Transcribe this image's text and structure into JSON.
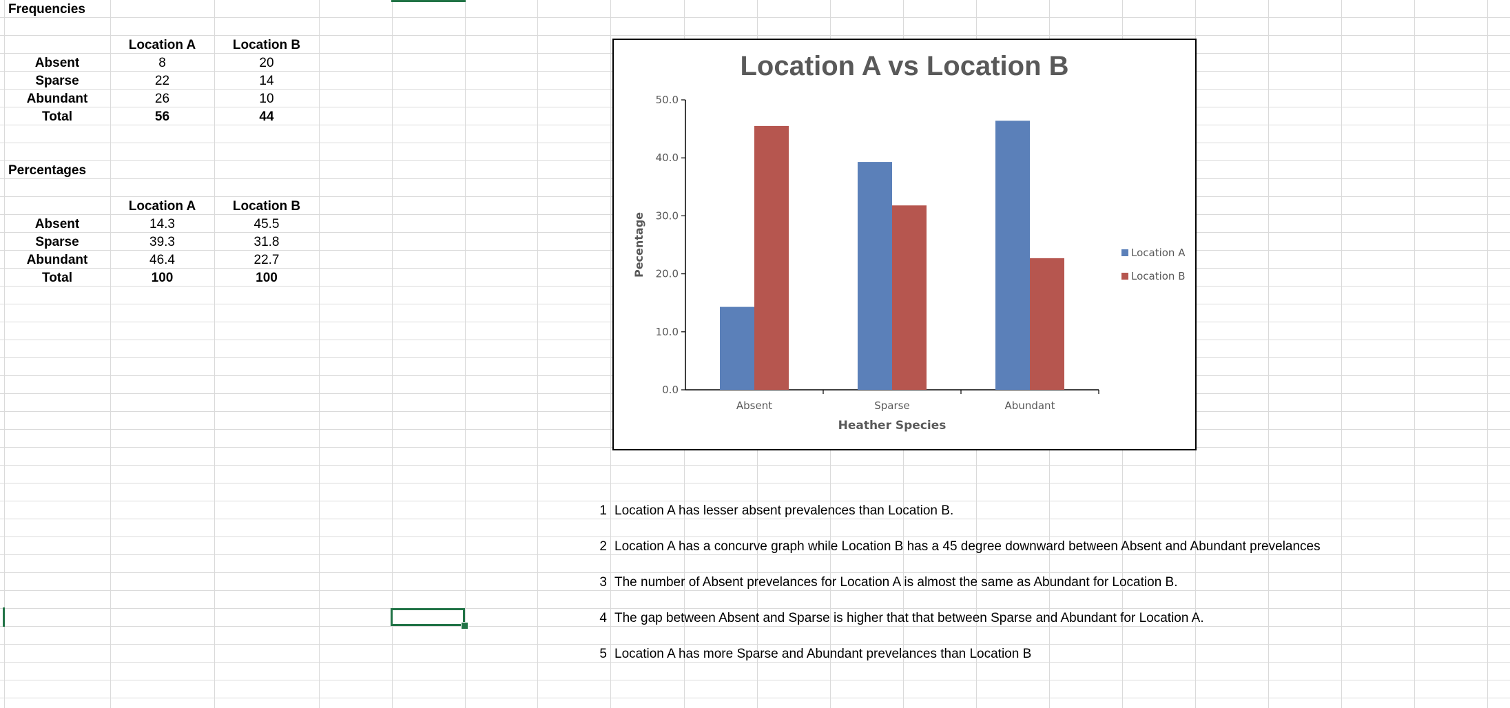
{
  "frequencies": {
    "title": "Frequencies",
    "headers": [
      "Location A",
      "Location B"
    ],
    "rows": [
      {
        "label": "Absent",
        "a": "8",
        "b": "20"
      },
      {
        "label": "Sparse",
        "a": "22",
        "b": "14"
      },
      {
        "label": "Abundant",
        "a": "26",
        "b": "10"
      },
      {
        "label": "Total",
        "a": "56",
        "b": "44"
      }
    ]
  },
  "percentages": {
    "title": "Percentages",
    "headers": [
      "Location A",
      "Location B"
    ],
    "rows": [
      {
        "label": "Absent",
        "a": "14.3",
        "b": "45.5"
      },
      {
        "label": "Sparse",
        "a": "39.3",
        "b": "31.8"
      },
      {
        "label": "Abundant",
        "a": "46.4",
        "b": "22.7"
      },
      {
        "label": "Total",
        "a": "100",
        "b": "100"
      }
    ]
  },
  "chart_data": {
    "type": "bar",
    "title": "Location A vs Location B",
    "xlabel": "Heather Species",
    "ylabel": "Pecentage",
    "categories": [
      "Absent",
      "Sparse",
      "Abundant"
    ],
    "series": [
      {
        "name": "Location A",
        "values": [
          14.3,
          39.3,
          46.4
        ],
        "color": "#5b80b9"
      },
      {
        "name": "Location B",
        "values": [
          45.5,
          31.8,
          22.7
        ],
        "color": "#b6564f"
      }
    ],
    "ylim": [
      0,
      50
    ],
    "yticks": [
      "0.0",
      "10.0",
      "20.0",
      "30.0",
      "40.0",
      "50.0"
    ],
    "legend": "right",
    "grid": false
  },
  "notes": [
    {
      "num": "1",
      "text": "Location A has lesser absent prevalences than Location B."
    },
    {
      "num": "2",
      "text": "Location A has a concurve graph while Location B has a 45 degree downward between Absent and Abundant prevelances"
    },
    {
      "num": "3",
      "text": "The number of Absent prevelances for Location A is almost the same as Abundant for Location B."
    },
    {
      "num": "4",
      "text": "The gap between Absent and Sparse is higher that that between Sparse and Abundant  for Location A."
    },
    {
      "num": "5",
      "text": "Location A has more Sparse and Abundant prevelances than Location B"
    }
  ],
  "colors": {
    "selection": "#217346",
    "gridline": "#dadada"
  }
}
